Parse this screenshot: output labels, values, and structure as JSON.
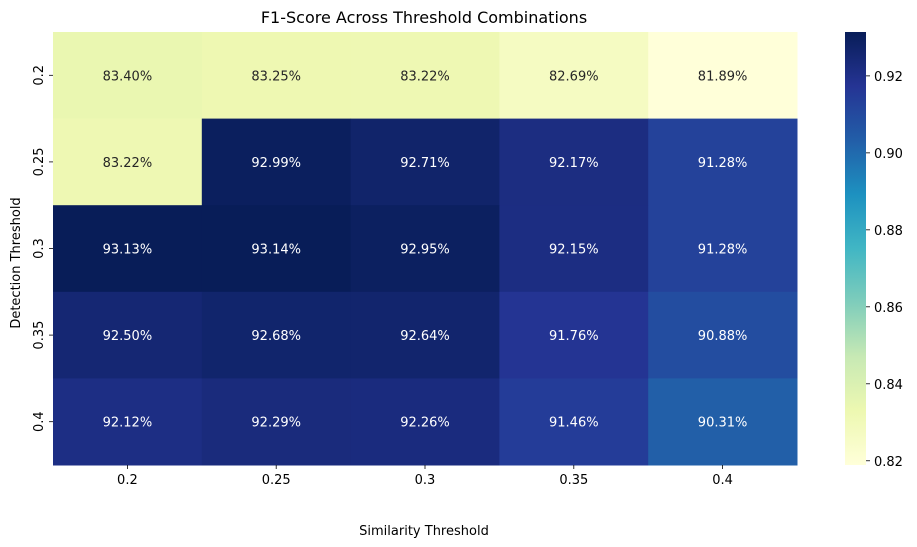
{
  "chart_data": {
    "type": "heatmap",
    "title": "F1-Score Across Threshold Combinations",
    "xlabel": "Similarity Threshold",
    "ylabel": "Detection Threshold",
    "x_categories": [
      "0.2",
      "0.25",
      "0.3",
      "0.35",
      "0.4"
    ],
    "y_categories": [
      "0.2",
      "0.25",
      "0.3",
      "0.35",
      "0.4"
    ],
    "values": [
      [
        0.834,
        0.8325,
        0.8322,
        0.8269,
        0.8189
      ],
      [
        0.8322,
        0.9299,
        0.9271,
        0.9217,
        0.9128
      ],
      [
        0.9313,
        0.9314,
        0.9295,
        0.9215,
        0.9128
      ],
      [
        0.925,
        0.9268,
        0.9264,
        0.9176,
        0.9088
      ],
      [
        0.9212,
        0.9229,
        0.9226,
        0.9146,
        0.9031
      ]
    ],
    "cell_labels": [
      [
        "83.40%",
        "83.25%",
        "83.22%",
        "82.69%",
        "81.89%"
      ],
      [
        "83.22%",
        "92.99%",
        "92.71%",
        "92.17%",
        "91.28%"
      ],
      [
        "93.13%",
        "93.14%",
        "92.95%",
        "92.15%",
        "91.28%"
      ],
      [
        "92.50%",
        "92.68%",
        "92.64%",
        "91.76%",
        "90.88%"
      ],
      [
        "92.12%",
        "92.29%",
        "92.26%",
        "91.46%",
        "90.31%"
      ]
    ],
    "colorbar": {
      "colormap": "YlGnBu",
      "range": [
        0.8189,
        0.9314
      ],
      "ticks": [
        "0.82",
        "0.84",
        "0.86",
        "0.88",
        "0.90",
        "0.92"
      ]
    }
  }
}
